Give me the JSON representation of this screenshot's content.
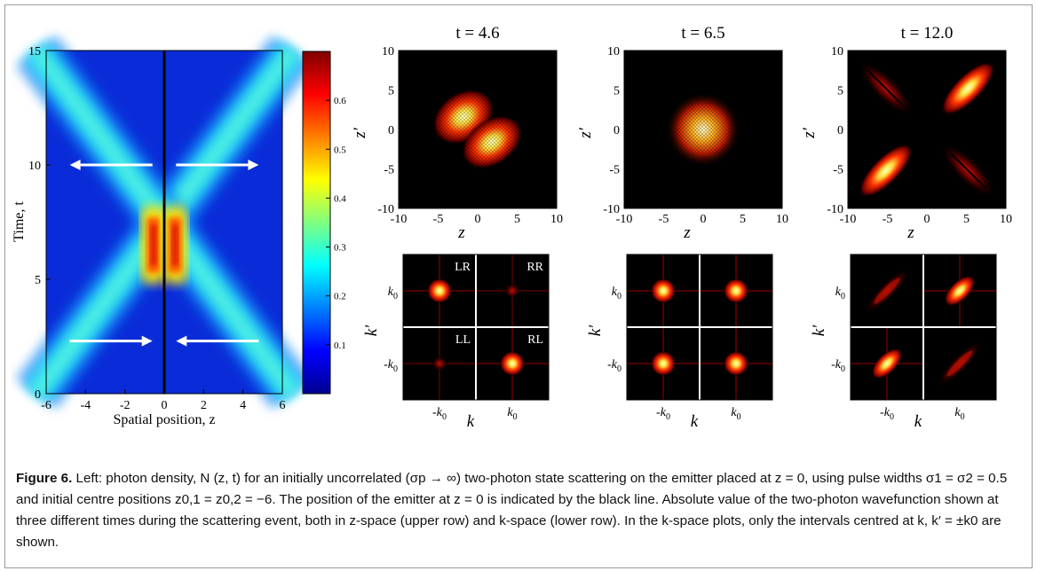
{
  "chart_data": [
    {
      "type": "heatmap",
      "panel": "density",
      "xlabel": "Spatial position, z",
      "ylabel": "Time, t",
      "xlim": [
        -6,
        6
      ],
      "ylim": [
        0,
        15
      ],
      "xticks": [
        "-6",
        "-4",
        "-2",
        "0",
        "2",
        "4",
        "6"
      ],
      "yticks": [
        "0",
        "5",
        "10",
        "15"
      ],
      "colorbar": {
        "ticks": [
          "0.1",
          "0.2",
          "0.3",
          "0.4",
          "0.5",
          "0.6"
        ],
        "range": [
          0,
          0.7
        ]
      },
      "emitter_position": 0,
      "arrows": [
        {
          "from": [
            -0.6,
            10
          ],
          "to": [
            -4.8,
            10
          ]
        },
        {
          "from": [
            0.6,
            10
          ],
          "to": [
            4.8,
            10
          ]
        },
        {
          "from": [
            -4.8,
            2.3
          ],
          "to": [
            -0.6,
            2.3
          ]
        },
        {
          "from": [
            4.8,
            2.3
          ],
          "to": [
            0.6,
            2.3
          ]
        }
      ]
    },
    {
      "type": "heatmap",
      "panel": "z-space",
      "title": "t = 4.6",
      "xlabel": "z",
      "ylabel": "z′",
      "xlim": [
        -10,
        10
      ],
      "ylim": [
        -10,
        10
      ],
      "xticks": [
        "-10",
        "-5",
        "0",
        "5",
        "10"
      ],
      "yticks": [
        "-10",
        "-5",
        "0",
        "5",
        "10"
      ]
    },
    {
      "type": "heatmap",
      "panel": "z-space",
      "title": "t = 6.5",
      "xlabel": "z",
      "ylabel": "z′",
      "xlim": [
        -10,
        10
      ],
      "ylim": [
        -10,
        10
      ],
      "xticks": [
        "-10",
        "-5",
        "0",
        "5",
        "10"
      ],
      "yticks": [
        "-10",
        "-5",
        "0",
        "5",
        "10"
      ]
    },
    {
      "type": "heatmap",
      "panel": "z-space",
      "title": "t = 12.0",
      "xlabel": "z",
      "ylabel": "z′",
      "xlim": [
        -10,
        10
      ],
      "ylim": [
        -10,
        10
      ],
      "xticks": [
        "-10",
        "-5",
        "0",
        "5",
        "10"
      ],
      "yticks": [
        "-10",
        "-5",
        "0",
        "5",
        "10"
      ]
    },
    {
      "type": "heatmap",
      "panel": "k-space",
      "xlabel": "k",
      "ylabel": "k′",
      "xticks": [
        "-k0",
        "k0"
      ],
      "yticks": [
        "k0",
        "-k0"
      ],
      "quadrant_labels": [
        "LR",
        "RR",
        "LL",
        "RL"
      ]
    },
    {
      "type": "heatmap",
      "panel": "k-space",
      "xlabel": "k",
      "ylabel": "k′",
      "xticks": [
        "-k0",
        "k0"
      ],
      "yticks": [
        "k0",
        "-k0"
      ]
    },
    {
      "type": "heatmap",
      "panel": "k-space",
      "xlabel": "k",
      "ylabel": "k′",
      "xticks": [
        "-k0",
        "k0"
      ],
      "yticks": [
        "k0",
        "-k0"
      ]
    }
  ],
  "caption": {
    "label": "Figure 6.",
    "text": "Left: photon density, N (z, t) for an initially uncorrelated (σp → ∞) two-photon state scattering on the emitter placed at z = 0, using pulse widths σ1 = σ2 = 0.5 and initial centre positions z0,1 = z0,2 = −6. The position of the emitter at z = 0 is indicated by the black line. Absolute value of the two-photon wavefunction shown at three different times during the scattering event, both in z-space (upper row) and k-space (lower row). In the k-space plots, only the intervals centred at k, k′ = ±k0 are shown."
  }
}
